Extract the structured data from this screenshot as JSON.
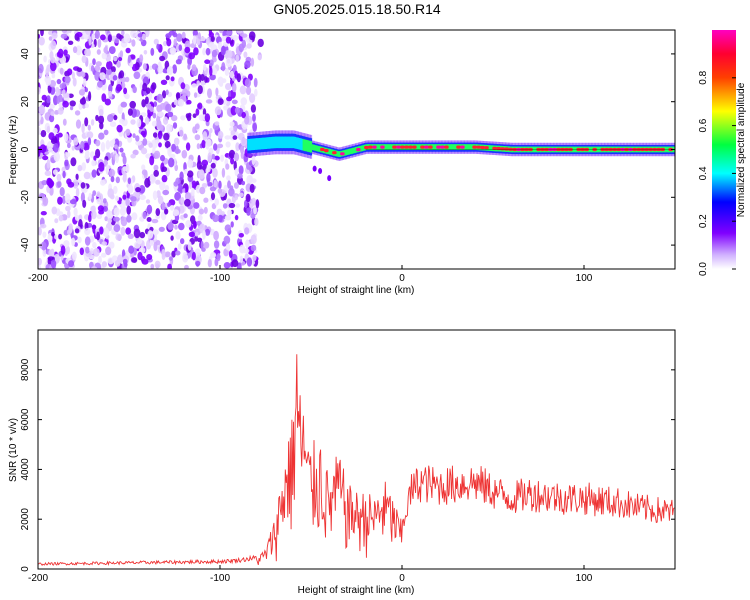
{
  "title": "GN05.2025.015.18.50.R14",
  "chart_data": [
    {
      "type": "heatmap",
      "xlabel": "Height of straight line (km)",
      "ylabel": "Frequency (Hz)",
      "xlim": [
        -200,
        150
      ],
      "ylim": [
        -50,
        50
      ],
      "x_ticks": [
        -200,
        -100,
        0,
        100
      ],
      "y_ticks": [
        -40,
        -20,
        0,
        20,
        40
      ],
      "noise_region_x": [
        -200,
        -80
      ],
      "ridge": {
        "x": [
          -85,
          -70,
          -60,
          -50,
          -40,
          -35,
          -30,
          -20,
          -10,
          0,
          20,
          40,
          60,
          80,
          100,
          120,
          150
        ],
        "frequency_hz": [
          2,
          3,
          3,
          1,
          -1,
          -2,
          -1,
          1,
          1,
          1,
          1,
          1,
          0,
          0,
          0,
          0,
          0
        ]
      },
      "colorbar": {
        "label": "Normalized spectral amplitude",
        "range": [
          0,
          1
        ],
        "ticks": [
          0,
          0.2,
          0.4,
          0.6,
          0.8
        ],
        "tick_labels": [
          "0.0",
          "0.2",
          "0.4",
          "0.6",
          "0.8"
        ],
        "colors": [
          "#ffffff",
          "#8000ff",
          "#0000ff",
          "#00ffff",
          "#00ff00",
          "#ffff00",
          "#ff8000",
          "#ff0000",
          "#ff00ff"
        ]
      }
    },
    {
      "type": "line",
      "xlabel": "Height of straight line (km)",
      "ylabel": "SNR (10 * v/v)",
      "xlim": [
        -200,
        150
      ],
      "ylim": [
        0,
        9600
      ],
      "x_ticks": [
        -200,
        -100,
        0,
        100
      ],
      "y_ticks": [
        0,
        2000,
        4000,
        6000,
        8000
      ],
      "color": "#ee3333",
      "series": [
        {
          "x": [
            -200,
            -150,
            -100,
            -90,
            -80,
            -75,
            -70,
            -65,
            -62,
            -60,
            -58,
            -56,
            -55,
            -52,
            -50,
            -45,
            -40,
            -35,
            -30,
            -25,
            -20,
            -15,
            -10,
            -5,
            0,
            5,
            10,
            20,
            30,
            40,
            50,
            60,
            70,
            80,
            90,
            100,
            110,
            120,
            130,
            140,
            150
          ],
          "y": [
            200,
            250,
            300,
            350,
            450,
            800,
            2000,
            4200,
            5500,
            6000,
            9600,
            7000,
            7400,
            5000,
            4800,
            5200,
            3500,
            4600,
            3300,
            3000,
            3000,
            2800,
            3500,
            2800,
            1800,
            3300,
            3700,
            3500,
            3600,
            3700,
            3300,
            3000,
            3200,
            3100,
            3000,
            3000,
            2900,
            2800,
            2600,
            2500,
            2400
          ]
        }
      ]
    }
  ]
}
